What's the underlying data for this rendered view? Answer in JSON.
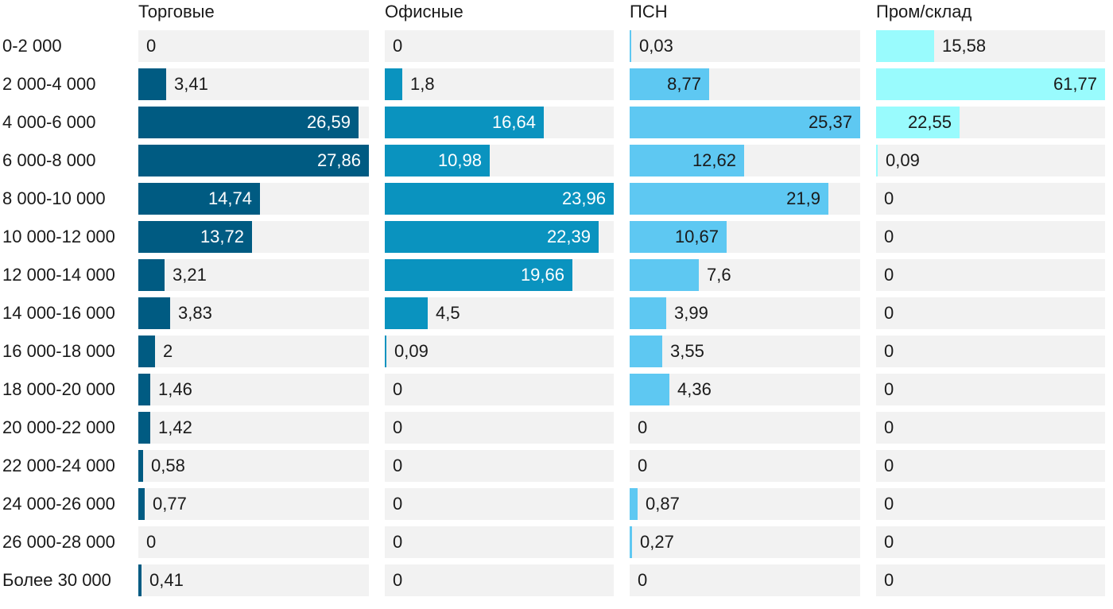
{
  "chart_data": {
    "type": "bar",
    "orientation": "horizontal",
    "layout": "small-multiples",
    "categories": [
      "0-2 000",
      "2 000-4 000",
      "4 000-6 000",
      "6 000-8 000",
      "8 000-10 000",
      "10 000-12 000",
      "12 000-14 000",
      "14 000-16 000",
      "16 000-18 000",
      "18 000-20 000",
      "20 000-22 000",
      "22 000-24 000",
      "24 000-26 000",
      "26 000-28 000",
      "Более 30 000"
    ],
    "series": [
      {
        "name": "Торговые",
        "color": "#005b82",
        "label_color_inside": "#ffffff",
        "values": [
          0,
          3.41,
          26.59,
          27.86,
          14.74,
          13.72,
          3.21,
          3.83,
          2,
          1.46,
          1.42,
          0.58,
          0.77,
          0,
          0.41
        ],
        "labels": [
          "0",
          "3,41",
          "26,59",
          "27,86",
          "14,74",
          "13,72",
          "3,21",
          "3,83",
          "2",
          "1,46",
          "1,42",
          "0,58",
          "0,77",
          "0",
          "0,41"
        ]
      },
      {
        "name": "Офисные",
        "color": "#0a93bf",
        "label_color_inside": "#ffffff",
        "values": [
          0,
          1.8,
          16.64,
          10.98,
          23.96,
          22.39,
          19.66,
          4.5,
          0.09,
          0,
          0,
          0,
          0,
          0,
          0
        ],
        "labels": [
          "0",
          "1,8",
          "16,64",
          "10,98",
          "23,96",
          "22,39",
          "19,66",
          "4,5",
          "0,09",
          "0",
          "0",
          "0",
          "0",
          "0",
          "0"
        ]
      },
      {
        "name": "ПСН",
        "color": "#5ec8f2",
        "label_color_inside": "#1a1a1a",
        "values": [
          0.03,
          8.77,
          25.37,
          12.62,
          21.9,
          10.67,
          7.6,
          3.99,
          3.55,
          4.36,
          0,
          0,
          0.87,
          0.27,
          0
        ],
        "labels": [
          "0,03",
          "8,77",
          "25,37",
          "12,62",
          "21,9",
          "10,67",
          "7,6",
          "3,99",
          "3,55",
          "4,36",
          "0",
          "0",
          "0,87",
          "0,27",
          "0"
        ]
      },
      {
        "name": "Пром/склад",
        "color": "#99fbfd",
        "label_color_inside": "#1a1a1a",
        "values": [
          15.58,
          61.77,
          22.55,
          0.09,
          0,
          0,
          0,
          0,
          0,
          0,
          0,
          0,
          0,
          0,
          0
        ],
        "labels": [
          "15,58",
          "61,77",
          "22,55",
          "0,09",
          "0",
          "0",
          "0",
          "0",
          "0",
          "0",
          "0",
          "0",
          "0",
          "0",
          "0"
        ]
      }
    ],
    "track_color": "#f2f2f2",
    "text_color": "#1a1a1a"
  }
}
